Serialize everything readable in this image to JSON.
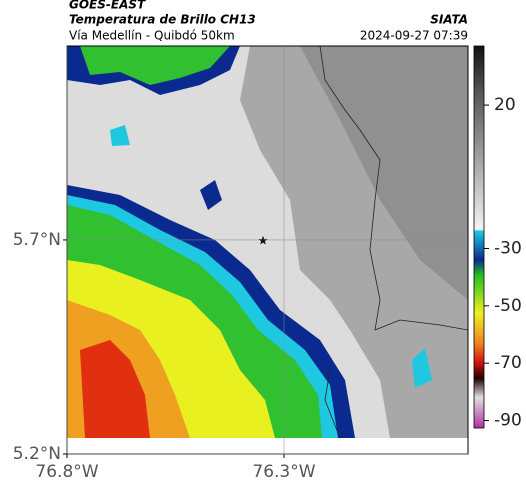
{
  "header": {
    "source": "GOES-EAST",
    "title": "Temperatura de Brillo CH13",
    "org": "SIATA",
    "subtitle": "Vía Medellín - Quibdó 50km",
    "datetime": "2024-09-27 07:39"
  },
  "map": {
    "lonlim": [
      -76.8,
      -75.876
    ],
    "latlim": [
      5.2,
      6.153
    ],
    "lon_ticks": [
      {
        "value": -76.8,
        "label": "76.8°W"
      },
      {
        "value": -76.3,
        "label": "76.3°W"
      }
    ],
    "lat_ticks": [
      {
        "value": 5.7,
        "label": "5.7°N"
      },
      {
        "value": 5.2,
        "label": "5.2°N"
      }
    ],
    "grid": true
  },
  "colorbar": {
    "lim": [
      -92.6,
      40.6
    ],
    "ticks": [
      20,
      -30,
      -50,
      -70,
      -90
    ]
  }
}
